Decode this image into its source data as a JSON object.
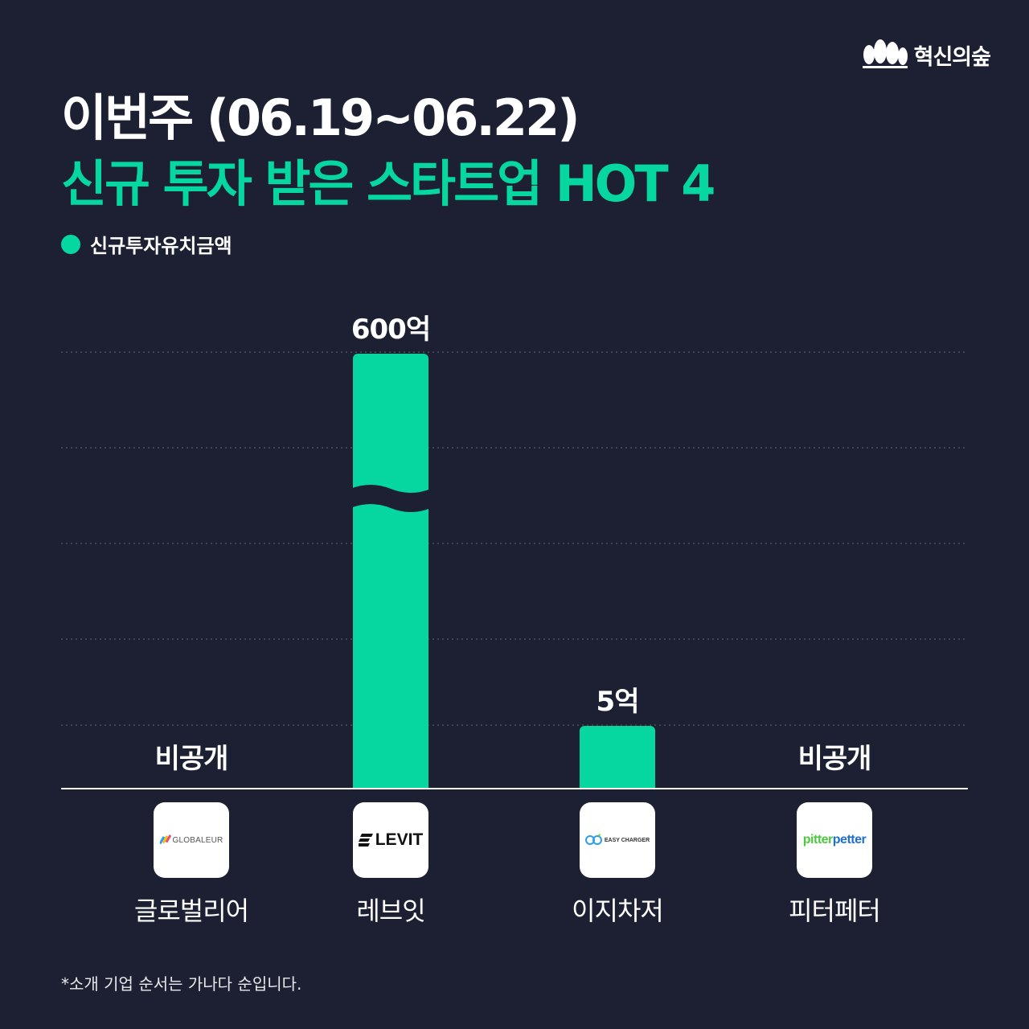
{
  "brand": {
    "name": "혁신의숲",
    "icon": "trees-icon"
  },
  "header": {
    "title_line1": "이번주 (06.19~06.22)",
    "title_line2": "신규 투자 받은 스타트업 HOT 4"
  },
  "legend": {
    "label": "신규투자유치금액",
    "color": "#06d6a0"
  },
  "colors": {
    "background": "#1c2032",
    "accent": "#06d6a0",
    "text": "#ffffff"
  },
  "chart_data": {
    "type": "bar",
    "categories": [
      "글로벌리어",
      "레브잇",
      "이지차저",
      "피터페터"
    ],
    "values": [
      null,
      600,
      5,
      null
    ],
    "value_labels": [
      "비공개",
      "600억",
      "5억",
      "비공개"
    ],
    "unit": "억",
    "axis_break": true,
    "grid": true,
    "legend_position": "top-left"
  },
  "companies": [
    {
      "name": "글로벌리어",
      "logo_text": "GLOBALEUR",
      "value_label": "비공개"
    },
    {
      "name": "레브잇",
      "logo_text": "LEVIT",
      "value_label": "600억"
    },
    {
      "name": "이지차저",
      "logo_text": "EASY CHARGER",
      "value_label": "5억"
    },
    {
      "name": "피터페터",
      "logo_text_a": "pitter",
      "logo_text_b": "petter",
      "value_label": "비공개"
    }
  ],
  "footnote": "*소개 기업 순서는 가나다 순입니다."
}
